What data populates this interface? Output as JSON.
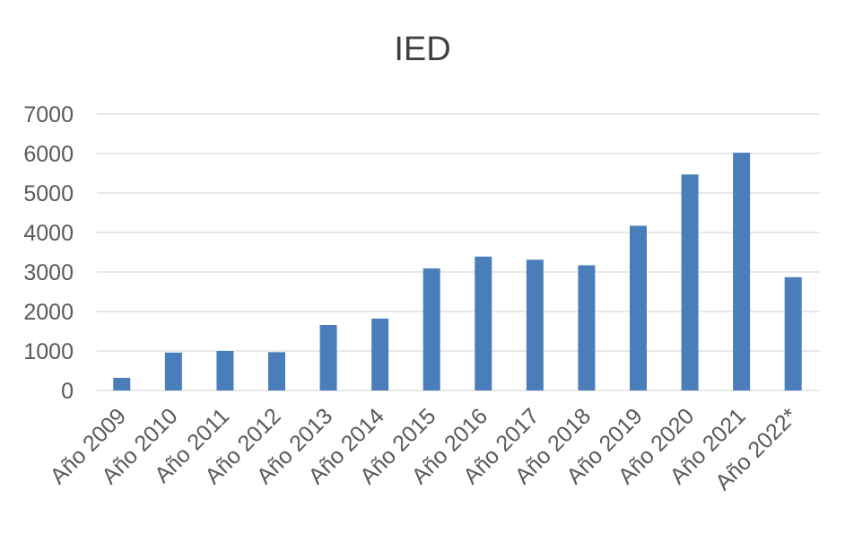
{
  "chart_data": {
    "type": "bar",
    "title": "IED",
    "xlabel": "",
    "ylabel": "",
    "categories": [
      "Año 2009",
      "Año 2010",
      "Año 2011",
      "Año 2012",
      "Año 2013",
      "Año 2014",
      "Año 2015",
      "Año 2016",
      "Año 2017",
      "Año 2018",
      "Año 2019",
      "Año 2020",
      "Año 2021",
      "Año 2022*"
    ],
    "values": [
      320,
      960,
      1000,
      970,
      1660,
      1820,
      3090,
      3390,
      3310,
      3170,
      4170,
      5470,
      6020,
      2870
    ],
    "ylim": [
      0,
      7000
    ],
    "yticks": [
      0,
      1000,
      2000,
      3000,
      4000,
      5000,
      6000,
      7000
    ],
    "grid": true,
    "legend": "none",
    "bar_color": "#4a7ebb"
  }
}
